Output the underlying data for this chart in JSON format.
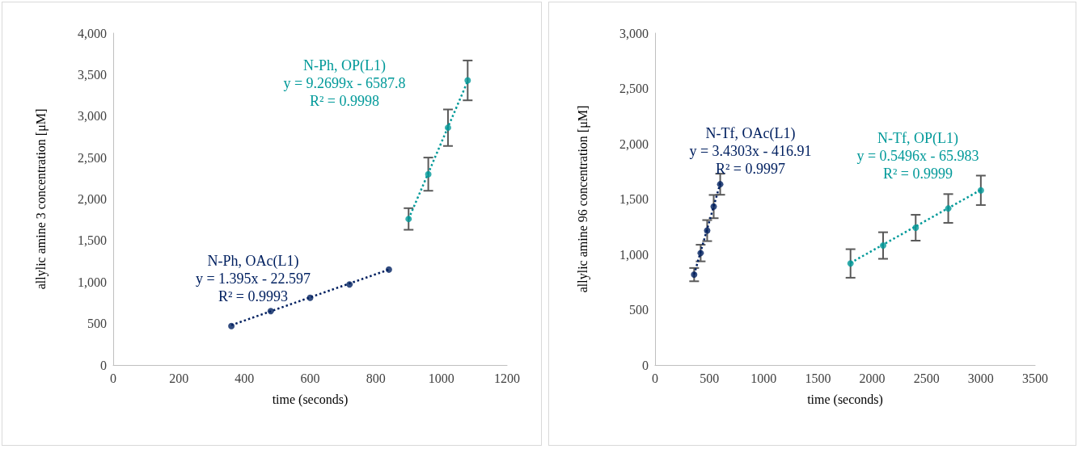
{
  "chart_data": [
    {
      "type": "scatter",
      "xlabel": "time (seconds)",
      "ylabel": "allylic amine 3 concentration [μM]",
      "xlim": [
        0,
        1200
      ],
      "xticks": [
        0,
        200,
        400,
        600,
        800,
        1000,
        1200
      ],
      "ylim": [
        0,
        4000
      ],
      "yticks": [
        {
          "value": 0,
          "label": "0"
        },
        {
          "value": 500,
          "label": "500"
        },
        {
          "value": 1000,
          "label": "1,000"
        },
        {
          "value": 1500,
          "label": "1,500"
        },
        {
          "value": 2000,
          "label": "2,000"
        },
        {
          "value": 2500,
          "label": "2,500"
        },
        {
          "value": 3000,
          "label": "3,000"
        },
        {
          "value": 3500,
          "label": "3,500"
        },
        {
          "value": 4000,
          "label": "4,000"
        }
      ],
      "marker": "circle",
      "series": [
        {
          "color": "#002060",
          "x": [
            360,
            480,
            600,
            720,
            840
          ],
          "values": [
            470,
            650,
            810,
            970,
            1150
          ]
        },
        {
          "color": "#009999",
          "x": [
            900,
            960,
            1020,
            1080
          ],
          "values": [
            1760,
            2300,
            2860,
            3430
          ],
          "errors": [
            130,
            200,
            220,
            240
          ]
        },
        {
          "type": "line",
          "color": "#002060",
          "x": [
            360,
            840
          ],
          "values": [
            480,
            1150
          ],
          "line_style": "dotted",
          "marker": "none"
        },
        {
          "type": "line",
          "color": "#009999",
          "x": [
            900,
            1080
          ],
          "values": [
            1760,
            3420
          ],
          "line_style": "dotted",
          "marker": "none"
        }
      ],
      "annotations": [
        "N-Ph, OAc(L1)",
        "y = 1.395x - 22.597",
        "R² = 0.9993",
        "N-Ph, OP(L1)",
        "y = 9.2699x - 6587.8",
        "R² = 0.9998"
      ]
    },
    {
      "type": "scatter",
      "xlabel": "time (seconds)",
      "ylabel": "allylic amine 96 concentration [μM]",
      "xlim": [
        0,
        3500
      ],
      "xticks": [
        0,
        500,
        1000,
        1500,
        2000,
        2500,
        3000,
        3500
      ],
      "ylim": [
        0,
        3000
      ],
      "yticks": [
        {
          "value": 0,
          "label": "0"
        },
        {
          "value": 500,
          "label": "500"
        },
        {
          "value": 1000,
          "label": "1,000"
        },
        {
          "value": 1500,
          "label": "1,500"
        },
        {
          "value": 2000,
          "label": "2,000"
        },
        {
          "value": 2500,
          "label": "2,500"
        },
        {
          "value": 3000,
          "label": "3,000"
        }
      ],
      "marker": "circle",
      "series": [
        {
          "color": "#002060",
          "x": [
            360,
            420,
            480,
            540,
            600
          ],
          "values": [
            817,
            1012,
            1215,
            1432,
            1634
          ],
          "errors": [
            60,
            75,
            95,
            105,
            95
          ]
        },
        {
          "color": "#009999",
          "x": [
            1800,
            2100,
            2400,
            2700,
            3000
          ],
          "values": [
            918,
            1080,
            1241,
            1415,
            1579
          ],
          "errors": [
            129,
            120,
            117,
            130,
            133
          ]
        },
        {
          "type": "line",
          "color": "#002060",
          "x": [
            360,
            600
          ],
          "values": [
            818,
            1641
          ],
          "line_style": "dotted",
          "marker": "none"
        },
        {
          "type": "line",
          "color": "#009999",
          "x": [
            1800,
            3000
          ],
          "values": [
            923,
            1583
          ],
          "line_style": "dotted",
          "marker": "none"
        }
      ],
      "annotations": [
        "N-Tf, OAc(L1)",
        "y = 3.4303x - 416.91",
        "R² = 0.9997",
        "N-Tf, OP(L1)",
        "y = 0.5496x - 65.983",
        "R² = 0.9999"
      ]
    }
  ]
}
